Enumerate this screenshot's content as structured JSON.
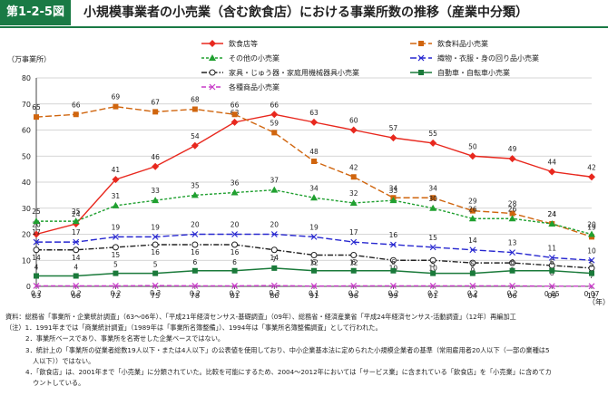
{
  "header": {
    "figure_label": "第1-2-5図",
    "title": "小規模事業者の小売業（含む飲食店）における事業所数の推移（産業中分類）"
  },
  "chart_data": {
    "type": "line",
    "ylabel": "（万事業所）",
    "xlabel": "（年）",
    "ylim": [
      0,
      80
    ],
    "yticks": [
      0,
      10,
      20,
      30,
      40,
      50,
      60,
      70,
      80
    ],
    "categories": [
      "63",
      "66",
      "72",
      "75",
      "78",
      "81",
      "86",
      "91",
      "96",
      "99",
      "01",
      "04",
      "06",
      "09",
      "12"
    ],
    "grid": "horizontal",
    "legend_position": "top",
    "series": [
      {
        "name": "飲食店等",
        "color": "#e8281e",
        "marker": "diamond",
        "dash": "solid",
        "values": [
          20,
          24,
          41,
          46,
          54,
          63,
          66,
          63,
          60,
          57,
          55,
          50,
          49,
          44,
          42
        ],
        "labels": [
          "20",
          "24",
          "41",
          "46",
          "54",
          "63",
          "66",
          "63",
          "60",
          "57",
          "55",
          "50",
          "49",
          "44",
          "42"
        ]
      },
      {
        "name": "飲食料品小売業",
        "color": "#d0650e",
        "marker": "square",
        "dash": "long",
        "values": [
          65,
          66,
          69,
          67,
          68,
          66,
          59,
          48,
          42,
          34,
          34,
          29,
          28,
          24,
          19
        ],
        "labels": [
          "65",
          "66",
          "69",
          "67",
          "68",
          "66",
          "59",
          "48",
          "42",
          "34",
          "34",
          "29",
          "28",
          "24",
          "19"
        ]
      },
      {
        "name": "その他の小売業",
        "color": "#20a030",
        "marker": "triangle",
        "dash": "short",
        "values": [
          25,
          25,
          31,
          33,
          35,
          36,
          37,
          34,
          32,
          33,
          30,
          26,
          26,
          24,
          20
        ],
        "labels": [
          "25",
          "25",
          "31",
          "33",
          "35",
          "36",
          "37",
          "34",
          "32",
          "33",
          "30",
          "26",
          "26",
          "24",
          "20"
        ]
      },
      {
        "name": "織物・衣服・身の回り品小売業",
        "color": "#2828d0",
        "marker": "x",
        "dash": "long",
        "values": [
          17,
          17,
          19,
          19,
          20,
          20,
          20,
          19,
          17,
          16,
          15,
          14,
          13,
          11,
          10
        ],
        "labels": [
          "17",
          "17",
          "19",
          "19",
          "20",
          "20",
          "20",
          "19",
          "17",
          "16",
          "15",
          "14",
          "13",
          "11",
          "10"
        ]
      },
      {
        "name": "家具・じゅう器・家庭用機械器具小売業",
        "color": "#222222",
        "marker": "circle",
        "dash": "dashdot",
        "values": [
          14,
          14,
          15,
          16,
          16,
          16,
          14,
          12,
          12,
          10,
          10,
          9,
          9,
          8,
          7
        ],
        "labels": [
          "14",
          "14",
          "15",
          "16",
          "16",
          "16",
          "14",
          "12",
          "12",
          "10",
          "10",
          "9",
          "9",
          "8",
          "7"
        ]
      },
      {
        "name": "自動車・自転車小売業",
        "color": "#1a7a3a",
        "marker": "square",
        "dash": "solid",
        "values": [
          4,
          4,
          5,
          5,
          6,
          6,
          7,
          6,
          6,
          6,
          5,
          5,
          6,
          6,
          5
        ],
        "labels": [
          "4",
          "4",
          "5",
          "5",
          "6",
          "6",
          "7",
          "6",
          "6",
          "6",
          "5",
          "5",
          "6",
          "6",
          "5"
        ]
      },
      {
        "name": "各種商品小売業",
        "color": "#c83cc8",
        "marker": "x",
        "dash": "dash",
        "values": [
          0.2,
          0.2,
          0.2,
          0.3,
          0.2,
          0.2,
          0.3,
          0.1,
          0.2,
          0.2,
          0.2,
          0.2,
          0.2,
          0.05,
          0.07
        ],
        "labels": [
          "0.2",
          "0.2",
          "0.2",
          "0.3",
          "0.2",
          "0.2",
          "0.3",
          "0.1",
          "0.2",
          "0.2",
          "0.2",
          "0.2",
          "0.2",
          "0.05",
          "0.07"
        ]
      }
    ]
  },
  "notes": [
    "資料：総務省「事業所・企業統計調査」（63〜06年）、「平成21年経済センサス-基礎調査」（09年）、総務省・経済産業省「平成24年経済センサス-活動調査」（12年）再編加工",
    "（注）1．1991年までは「商業統計調査」（1989年は「事業所名簿整備」）、1994年は「事業所名簿整備調査」として行われた。",
    "2．事業所ベースであり、事業所を名寄せした企業ベースではない。",
    "3．統計上の「事業所の従業者総数19人以下・または4人以下」の公表値を使用しており、中小企業基本法に定められた小規模企業者の基準（常用雇用者20人以下（一部の業種は5",
    "人以下））ではない。",
    "4．「飲食店」は、2001年まで「小売業」に分類されていた。比較を可能にするため、2004〜2012年においては「サービス業」に含まれている「飲食店」を「小売業」に含めてカ",
    "ウントしている。"
  ]
}
